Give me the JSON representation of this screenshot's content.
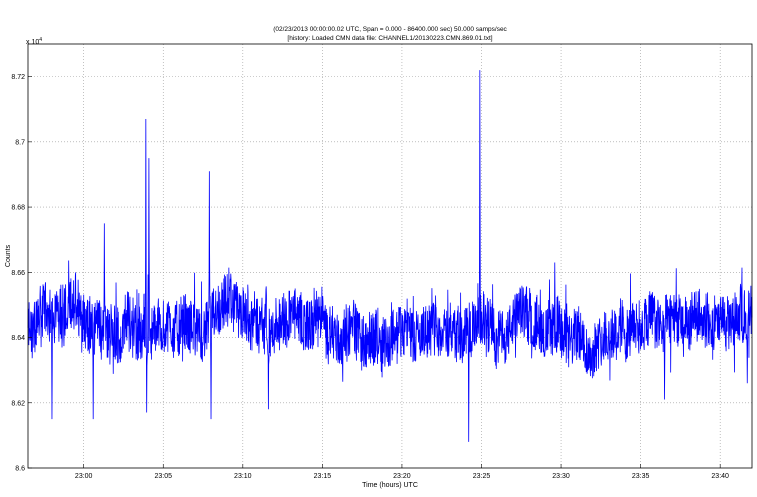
{
  "chart_data": {
    "type": "line",
    "title": "(02/23/2013 00:00:00.02 UTC, Span =  0.000 - 86400.000 sec)  50.000 samps/sec",
    "subtitle": "[history: Loaded CMN data file: CHANNEL1/20130223.CMN.869.01.txt]",
    "xlabel": "Time (hours) UTC",
    "ylabel": "Counts",
    "y_exponent_label": "x 10",
    "y_exponent": "4",
    "grid": true,
    "line_color": "#0000ff",
    "x_range_minutes": [
      1376.5,
      1422
    ],
    "ylim": [
      8.6,
      8.73
    ],
    "x_ticks": [
      {
        "value": 1380,
        "label": "23:00"
      },
      {
        "value": 1385,
        "label": "23:05"
      },
      {
        "value": 1390,
        "label": "23:10"
      },
      {
        "value": 1395,
        "label": "23:15"
      },
      {
        "value": 1400,
        "label": "23:20"
      },
      {
        "value": 1405,
        "label": "23:25"
      },
      {
        "value": 1410,
        "label": "23:30"
      },
      {
        "value": 1415,
        "label": "23:35"
      },
      {
        "value": 1420,
        "label": "23:40"
      }
    ],
    "y_ticks": [
      {
        "value": 8.6,
        "label": "8.6"
      },
      {
        "value": 8.62,
        "label": "8.62"
      },
      {
        "value": 8.64,
        "label": "8.64"
      },
      {
        "value": 8.66,
        "label": "8.66"
      },
      {
        "value": 8.68,
        "label": "8.68"
      },
      {
        "value": 8.7,
        "label": "8.7"
      },
      {
        "value": 8.72,
        "label": "8.72"
      }
    ],
    "series": [
      {
        "baseline": 8.643,
        "noise_amplitude": 0.012,
        "spikes": [
          {
            "x": 1381.3,
            "y": 8.675
          },
          {
            "x": 1383.9,
            "y": 8.707
          },
          {
            "x": 1383.95,
            "y": 8.617
          },
          {
            "x": 1384.1,
            "y": 8.695
          },
          {
            "x": 1387.9,
            "y": 8.691
          },
          {
            "x": 1388.0,
            "y": 8.615
          },
          {
            "x": 1391.6,
            "y": 8.618
          },
          {
            "x": 1404.2,
            "y": 8.608
          },
          {
            "x": 1404.9,
            "y": 8.722
          },
          {
            "x": 1380.6,
            "y": 8.615
          },
          {
            "x": 1378.0,
            "y": 8.615
          },
          {
            "x": 1416.5,
            "y": 8.621
          },
          {
            "x": 1409.6,
            "y": 8.663
          },
          {
            "x": 1421.7,
            "y": 8.626
          }
        ]
      }
    ]
  }
}
